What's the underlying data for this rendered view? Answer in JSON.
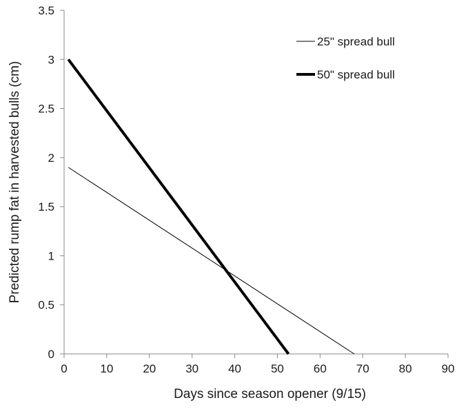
{
  "chart_data": {
    "type": "line",
    "title": "",
    "xlabel": "Days since season opener (9/15)",
    "ylabel": "Predicted rump fat in harvested bulls (cm)",
    "xlim": [
      0,
      90
    ],
    "ylim": [
      0,
      3.5
    ],
    "x_ticks": [
      "0",
      "10",
      "20",
      "30",
      "40",
      "50",
      "60",
      "70",
      "80",
      "90"
    ],
    "y_ticks": [
      "0",
      "0.5",
      "1",
      "1.5",
      "2",
      "2.5",
      "3",
      "3.5"
    ],
    "grid": false,
    "legend_position": "top-right",
    "series": [
      {
        "name": "25\" spread bull",
        "style": "thin",
        "color": "#000000",
        "x": [
          1,
          68
        ],
        "y": [
          1.9,
          0
        ]
      },
      {
        "name": "50\" spread bull",
        "style": "thick",
        "color": "#000000",
        "x": [
          1,
          52.6
        ],
        "y": [
          3.0,
          0
        ]
      }
    ]
  }
}
